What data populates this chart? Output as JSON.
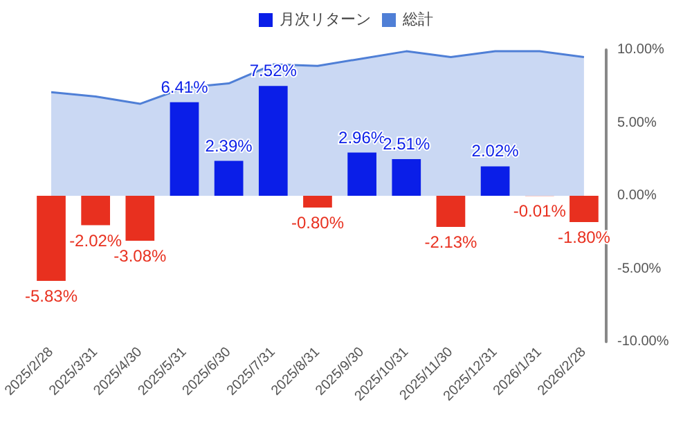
{
  "chart_data": {
    "type": "bar",
    "categories": [
      "2025/2/28",
      "2025/3/31",
      "2025/4/30",
      "2025/5/31",
      "2025/6/30",
      "2025/7/31",
      "2025/8/31",
      "2025/9/30",
      "2025/10/31",
      "2025/11/30",
      "2025/12/31",
      "2026/1/31",
      "2026/2/28"
    ],
    "series": [
      {
        "name": "月次リターン",
        "color": "#0a1ee8",
        "colors": [
          "#e8301f",
          "#e8301f",
          "#e8301f",
          "#0a1ee8",
          "#0a1ee8",
          "#0a1ee8",
          "#e8301f",
          "#0a1ee8",
          "#0a1ee8",
          "#e8301f",
          "#0a1ee8",
          "#e8301f",
          "#e8301f"
        ],
        "values": [
          -5.83,
          -2.02,
          -3.08,
          6.41,
          2.39,
          7.52,
          -0.8,
          2.96,
          2.51,
          -2.13,
          2.02,
          -0.01,
          -1.8
        ],
        "value_labels": [
          "-5.83%",
          "-2.02%",
          "-3.08%",
          "6.41%",
          "2.39%",
          "7.52%",
          "-0.80%",
          "2.96%",
          "2.51%",
          "-2.13%",
          "2.02%",
          "-0.01%",
          "-1.80%"
        ]
      },
      {
        "name": "総計",
        "type": "area",
        "color": "#4f7fd6",
        "values": [
          7.1,
          6.8,
          6.3,
          7.4,
          7.7,
          9.0,
          8.9,
          9.4,
          9.9,
          9.5,
          9.9,
          9.9,
          9.5
        ]
      }
    ],
    "ylim": [
      -10,
      10
    ],
    "yticks": [
      {
        "value": -10,
        "label": "-10.00%"
      },
      {
        "value": -5,
        "label": "-5.00%"
      },
      {
        "value": 0,
        "label": "0.00%"
      },
      {
        "value": 5,
        "label": "5.00%"
      },
      {
        "value": 10,
        "label": "10.00%"
      }
    ],
    "grid": false,
    "legend": "top"
  }
}
